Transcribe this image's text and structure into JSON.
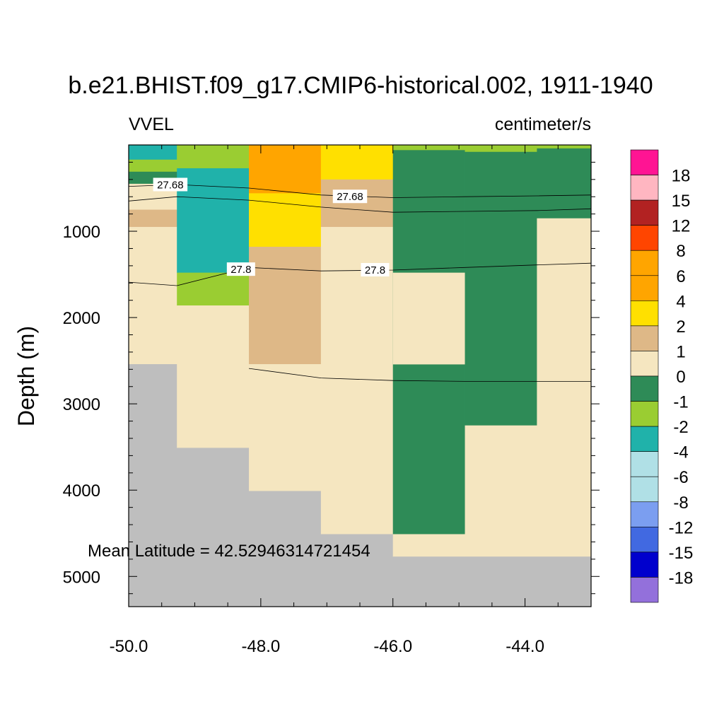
{
  "chart_data": {
    "type": "heatmap",
    "title": "b.e21.BHIST.f09_g17.CMIP6-historical.002, 1911-1940",
    "left_subtitle": "VVEL",
    "right_subtitle": "centimeter/s",
    "xlabel": "",
    "ylabel": "Depth (m)",
    "xlim": [
      -50.0,
      -43.0
    ],
    "ylim": [
      5350,
      0
    ],
    "y_reversed": true,
    "x_ticks": [
      -50.0,
      -48.0,
      -46.0,
      -44.0
    ],
    "x_tick_labels": [
      "-50.0",
      "-48.0",
      "-46.0",
      "-44.0"
    ],
    "y_ticks": [
      1000,
      2000,
      3000,
      4000,
      5000
    ],
    "y_tick_labels": [
      "1000",
      "2000",
      "3000",
      "4000",
      "5000"
    ],
    "annotation": "Mean Latitude = 42.52946314721454",
    "missing_color": "#BEBEBE",
    "colorbar": {
      "labels": [
        "18",
        "15",
        "12",
        "8",
        "6",
        "4",
        "2",
        "1",
        "0",
        "-1",
        "-2",
        "-4",
        "-6",
        "-8",
        "-12",
        "-15",
        "-18"
      ],
      "colors": [
        "#FF1493",
        "#FFB6C1",
        "#B22222",
        "#FF4500",
        "#FFA500",
        "#FFA500",
        "#FFE000",
        "#DEB887",
        "#F5E6C0",
        "#2E8B57",
        "#9ACD32",
        "#20B2AA",
        "#B0E0E6",
        "#B0E0E6",
        "#7B9EF0",
        "#4169E1",
        "#0000CD",
        "#9370DB"
      ]
    },
    "cells": [
      {
        "x0": -50.0,
        "x1": -49.27,
        "y0": 0,
        "y1": 20,
        "color": "#20B2AA"
      },
      {
        "x0": -50.0,
        "x1": -49.27,
        "y0": 20,
        "y1": 170,
        "color": "#20B2AA"
      },
      {
        "x0": -50.0,
        "x1": -49.27,
        "y0": 170,
        "y1": 310,
        "color": "#9ACD32"
      },
      {
        "x0": -50.0,
        "x1": -49.27,
        "y0": 310,
        "y1": 450,
        "color": "#2E8B57"
      },
      {
        "x0": -50.0,
        "x1": -49.27,
        "y0": 450,
        "y1": 750,
        "color": "#F5E6C0"
      },
      {
        "x0": -50.0,
        "x1": -49.27,
        "y0": 750,
        "y1": 950,
        "color": "#DEB887"
      },
      {
        "x0": -50.0,
        "x1": -49.27,
        "y0": 950,
        "y1": 2540,
        "color": "#F5E6C0"
      },
      {
        "x0": -50.0,
        "x1": -49.27,
        "y0": 2540,
        "y1": 5350,
        "color": "#BEBEBE"
      },
      {
        "x0": -49.27,
        "x1": -48.18,
        "y0": 0,
        "y1": 270,
        "color": "#9ACD32"
      },
      {
        "x0": -49.27,
        "x1": -48.18,
        "y0": 270,
        "y1": 1480,
        "color": "#20B2AA"
      },
      {
        "x0": -49.27,
        "x1": -48.18,
        "y0": 1480,
        "y1": 1860,
        "color": "#9ACD32"
      },
      {
        "x0": -49.27,
        "x1": -48.18,
        "y0": 1860,
        "y1": 3510,
        "color": "#F5E6C0"
      },
      {
        "x0": -49.27,
        "x1": -48.18,
        "y0": 3510,
        "y1": 5350,
        "color": "#BEBEBE"
      },
      {
        "x0": -48.18,
        "x1": -47.09,
        "y0": 0,
        "y1": 560,
        "color": "#FFA500"
      },
      {
        "x0": -48.18,
        "x1": -47.09,
        "y0": 560,
        "y1": 1180,
        "color": "#FFE000"
      },
      {
        "x0": -48.18,
        "x1": -47.09,
        "y0": 1180,
        "y1": 2540,
        "color": "#DEB887"
      },
      {
        "x0": -48.18,
        "x1": -47.09,
        "y0": 2540,
        "y1": 4010,
        "color": "#F5E6C0"
      },
      {
        "x0": -48.18,
        "x1": -47.09,
        "y0": 4010,
        "y1": 5350,
        "color": "#BEBEBE"
      },
      {
        "x0": -47.09,
        "x1": -46.0,
        "y0": 0,
        "y1": 400,
        "color": "#FFE000"
      },
      {
        "x0": -47.09,
        "x1": -46.0,
        "y0": 400,
        "y1": 950,
        "color": "#DEB887"
      },
      {
        "x0": -47.09,
        "x1": -46.0,
        "y0": 950,
        "y1": 4510,
        "color": "#F5E6C0"
      },
      {
        "x0": -47.09,
        "x1": -46.0,
        "y0": 4510,
        "y1": 5350,
        "color": "#BEBEBE"
      },
      {
        "x0": -46.0,
        "x1": -44.91,
        "y0": 0,
        "y1": 60,
        "color": "#9ACD32"
      },
      {
        "x0": -46.0,
        "x1": -44.91,
        "y0": 60,
        "y1": 4510,
        "color": "#2E8B57"
      },
      {
        "x0": -46.0,
        "x1": -44.91,
        "y0": 1480,
        "y1": 2540,
        "color": "#F5E6C0"
      },
      {
        "x0": -46.0,
        "x1": -44.91,
        "y0": 4510,
        "y1": 4770,
        "color": "#F5E6C0"
      },
      {
        "x0": -46.0,
        "x1": -44.91,
        "y0": 4770,
        "y1": 5350,
        "color": "#BEBEBE"
      },
      {
        "x0": -44.91,
        "x1": -43.82,
        "y0": 0,
        "y1": 80,
        "color": "#9ACD32"
      },
      {
        "x0": -44.91,
        "x1": -43.82,
        "y0": 80,
        "y1": 3250,
        "color": "#2E8B57"
      },
      {
        "x0": -44.91,
        "x1": -43.82,
        "y0": 3250,
        "y1": 4770,
        "color": "#F5E6C0"
      },
      {
        "x0": -44.91,
        "x1": -43.82,
        "y0": 4770,
        "y1": 5350,
        "color": "#BEBEBE"
      },
      {
        "x0": -43.82,
        "x1": -43.0,
        "y0": 0,
        "y1": 40,
        "color": "#9ACD32"
      },
      {
        "x0": -43.82,
        "x1": -43.0,
        "y0": 40,
        "y1": 850,
        "color": "#2E8B57"
      },
      {
        "x0": -43.82,
        "x1": -43.0,
        "y0": 850,
        "y1": 4770,
        "color": "#F5E6C0"
      },
      {
        "x0": -43.82,
        "x1": -43.0,
        "y0": 4770,
        "y1": 5350,
        "color": "#BEBEBE"
      }
    ],
    "contours": [
      {
        "label": "27.68",
        "points": [
          [
            -50.0,
            480
          ],
          [
            -49.27,
            460
          ],
          [
            -48.18,
            500
          ],
          [
            -47.09,
            580
          ],
          [
            -46.0,
            610
          ],
          [
            -44.91,
            600
          ],
          [
            -43.82,
            590
          ],
          [
            -43.0,
            580
          ]
        ],
        "label_x": -49.37
      },
      {
        "label": "",
        "points": [
          [
            -50.0,
            650
          ],
          [
            -49.27,
            600
          ],
          [
            -48.18,
            640
          ],
          [
            -47.09,
            720
          ],
          [
            -46.0,
            780
          ],
          [
            -44.91,
            770
          ],
          [
            -43.82,
            760
          ],
          [
            -43.0,
            740
          ]
        ]
      },
      {
        "label": "27.68",
        "points": [],
        "label_at": [
          -46.65,
          600
        ]
      },
      {
        "label": "27.8",
        "points": [
          [
            -50.0,
            1590
          ],
          [
            -49.27,
            1630
          ],
          [
            -48.18,
            1420
          ],
          [
            -47.09,
            1460
          ],
          [
            -46.0,
            1450
          ],
          [
            -44.91,
            1420
          ],
          [
            -43.82,
            1390
          ],
          [
            -43.0,
            1370
          ]
        ],
        "label_x": -48.3
      },
      {
        "label": "27.8",
        "points": [],
        "label_at": [
          -46.27,
          1450
        ]
      },
      {
        "label": "",
        "points": [
          [
            -48.18,
            2590
          ],
          [
            -47.09,
            2700
          ],
          [
            -46.0,
            2730
          ],
          [
            -44.91,
            2740
          ],
          [
            -43.82,
            2740
          ],
          [
            -43.0,
            2740
          ]
        ]
      }
    ]
  }
}
